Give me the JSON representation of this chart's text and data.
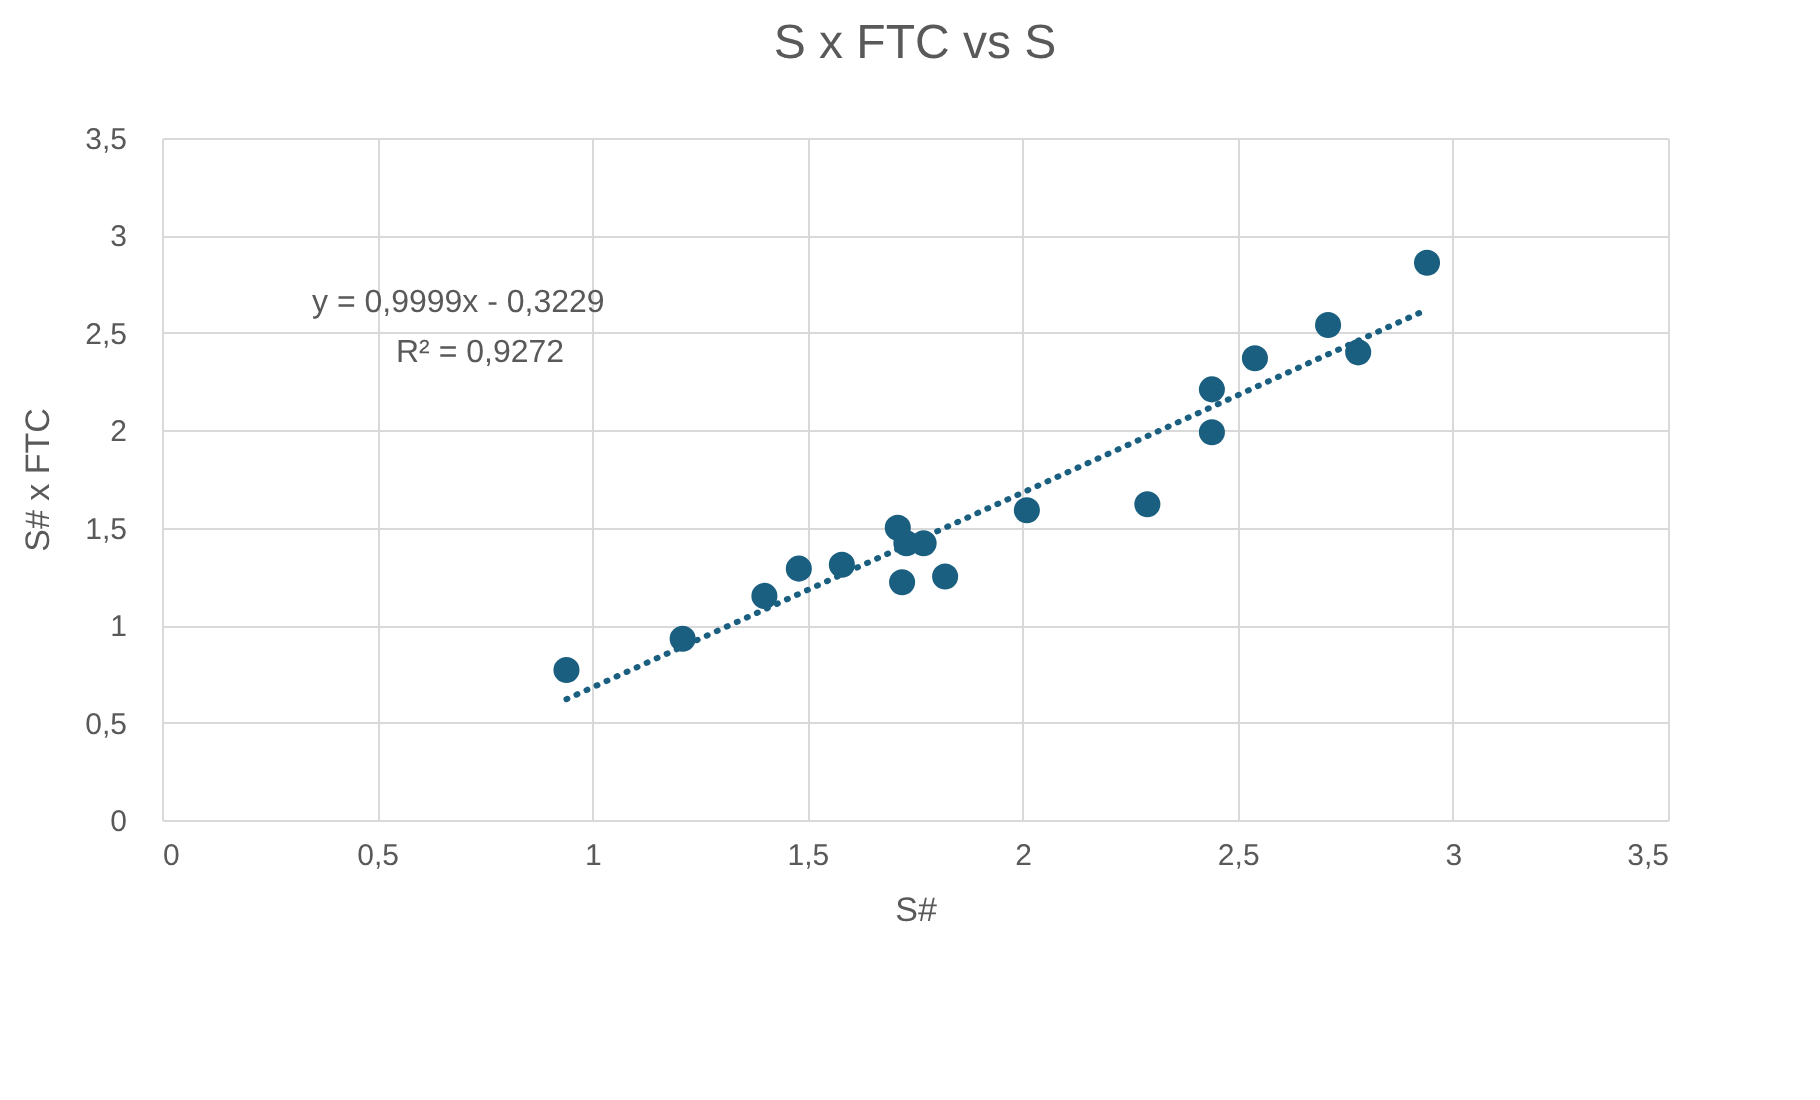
{
  "chart_data": {
    "type": "scatter",
    "title": "S x FTC vs S",
    "xlabel": "S#",
    "ylabel": "S# x FTC",
    "annotations": [
      "y = 0,9999x - 0,3229",
      "R² = 0,9272"
    ],
    "series": [
      {
        "color": "#1a5f7f",
        "marker": "circle",
        "x": [
          0.94,
          1.21,
          1.4,
          1.48,
          1.58,
          1.71,
          1.72,
          1.73,
          1.77,
          1.82,
          2.01,
          2.29,
          2.44,
          2.44,
          2.54,
          2.71,
          2.78,
          2.94
        ],
        "values": [
          0.77,
          0.93,
          1.15,
          1.29,
          1.31,
          1.5,
          1.22,
          1.42,
          1.42,
          1.25,
          1.59,
          1.62,
          2.21,
          1.99,
          2.37,
          2.54,
          2.4,
          2.86
        ]
      },
      {
        "type": "line",
        "color": "#1a5f7f",
        "line_style": "dotted",
        "x": [
          0.94,
          2.94
        ],
        "values": [
          0.62,
          2.62
        ]
      }
    ],
    "xlim": [
      0,
      3.5
    ],
    "ylim": [
      0,
      3.5
    ],
    "xticks": [
      0,
      {
        "value": 0.5,
        "label": "0,5"
      },
      1,
      {
        "value": 1.5,
        "label": "1,5"
      },
      2,
      {
        "value": 2.5,
        "label": "2,5"
      },
      3,
      {
        "value": 3.5,
        "label": "3,5"
      }
    ],
    "yticks": [
      0,
      {
        "value": 0.5,
        "label": "0,5"
      },
      1,
      {
        "value": 1.5,
        "label": "1,5"
      },
      2,
      {
        "value": 2.5,
        "label": "2,5"
      },
      3,
      {
        "value": 3.5,
        "label": "3,5"
      }
    ],
    "grid": true
  }
}
